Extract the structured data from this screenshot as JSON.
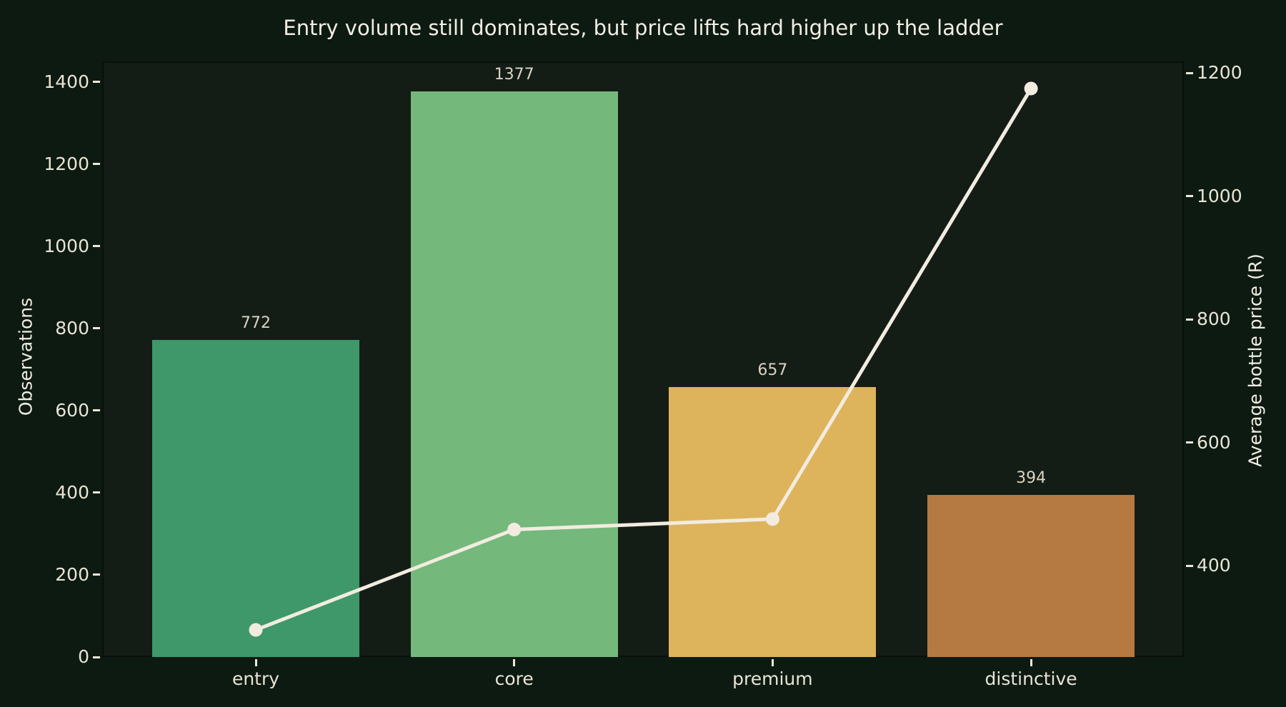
{
  "chart_data": {
    "type": "bar",
    "subtype": "bar-with-line-dual-axis",
    "title": "Entry volume still dominates, but price lifts hard higher up the ladder",
    "categories": [
      "entry",
      "core",
      "premium",
      "distinctive"
    ],
    "series": [
      {
        "name": "Observations",
        "type": "bar",
        "axis": "left",
        "values": [
          772,
          1377,
          657,
          394
        ],
        "value_labels": [
          "772",
          "1377",
          "657",
          "394"
        ],
        "bar_colors": [
          "#3e9869",
          "#74b87c",
          "#ddb45c",
          "#b57a42"
        ]
      },
      {
        "name": "Average bottle price (R)",
        "type": "line",
        "axis": "right",
        "values": [
          296,
          459,
          476,
          1175
        ],
        "color": "#f2ece0"
      }
    ],
    "left_axis": {
      "label": "Observations",
      "tick_values": [
        0,
        200,
        400,
        600,
        800,
        1000,
        1200,
        1400
      ],
      "tick_labels": [
        "0",
        "200",
        "400",
        "600",
        "800",
        "1000",
        "1200",
        "1400"
      ],
      "range": [
        0,
        1450
      ]
    },
    "right_axis": {
      "label": "Average bottle price (R)",
      "tick_values": [
        400,
        600,
        800,
        1000,
        1200
      ],
      "tick_labels": [
        "400",
        "600",
        "800",
        "1000",
        "1200"
      ],
      "range": [
        252,
        1219
      ]
    },
    "grid": false,
    "legend": "none"
  },
  "colors": {
    "figure_bg": "#0d1a12",
    "axes_bg": "#141c16",
    "spine": "#0a0e0b",
    "tick_mark": "#ece7d8",
    "tick_text": "#e9e4d4",
    "title_text": "#f2eee2",
    "bar_value_text": "#d9d3c1",
    "line": "#f2ece0"
  }
}
